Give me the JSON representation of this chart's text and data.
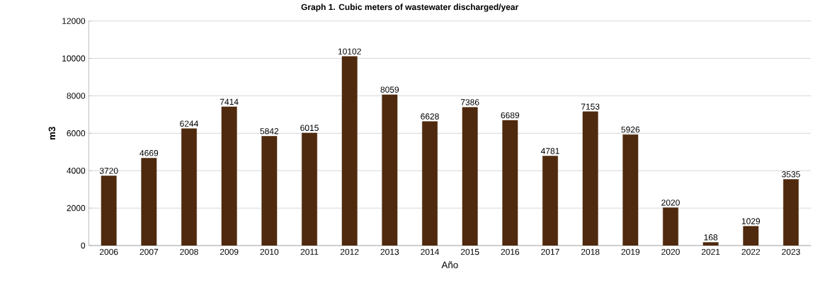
{
  "chart_data": {
    "type": "bar",
    "title": "Graph 1. Cubic meters of wastewater discharged/year",
    "xlabel": "Año",
    "ylabel": "m3",
    "categories": [
      "2006",
      "2007",
      "2008",
      "2009",
      "2010",
      "2011",
      "2012",
      "2013",
      "2014",
      "2015",
      "2016",
      "2017",
      "2018",
      "2019",
      "2020",
      "2021",
      "2022",
      "2023"
    ],
    "values": [
      3720,
      4669,
      6244,
      7414,
      5842,
      6015,
      10102,
      8059,
      6628,
      7386,
      6689,
      4781,
      7153,
      5926,
      2020,
      168,
      1029,
      3535
    ],
    "color": "#4f2a0e",
    "ylim": [
      0,
      12000
    ],
    "yticks": [
      0,
      2000,
      4000,
      6000,
      8000,
      10000,
      12000
    ],
    "grid": "y",
    "data_labels": true
  }
}
